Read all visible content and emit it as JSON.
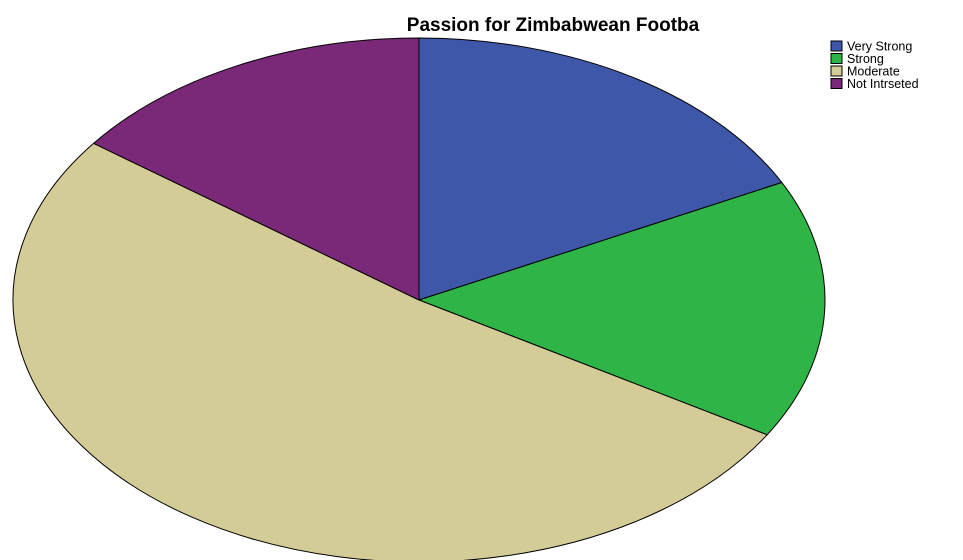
{
  "chart_data": {
    "type": "pie",
    "title": "Passion for Zimbabwean Footba",
    "slices": [
      {
        "label": "Very Strong",
        "value": 17.6,
        "color": "#3f57a9"
      },
      {
        "label": "Strong",
        "value": 16.0,
        "color": "#2eb447"
      },
      {
        "label": "Moderate",
        "value": 51.6,
        "color": "#d4cc97"
      },
      {
        "label": "Not Intrseted",
        "value": 14.8,
        "color": "#7a2979"
      }
    ],
    "start_position": "top",
    "direction": "clockwise",
    "legend": {
      "position": "top-right",
      "entries": [
        "Very Strong",
        "Strong",
        "Moderate",
        "Not Intrseted"
      ]
    }
  }
}
